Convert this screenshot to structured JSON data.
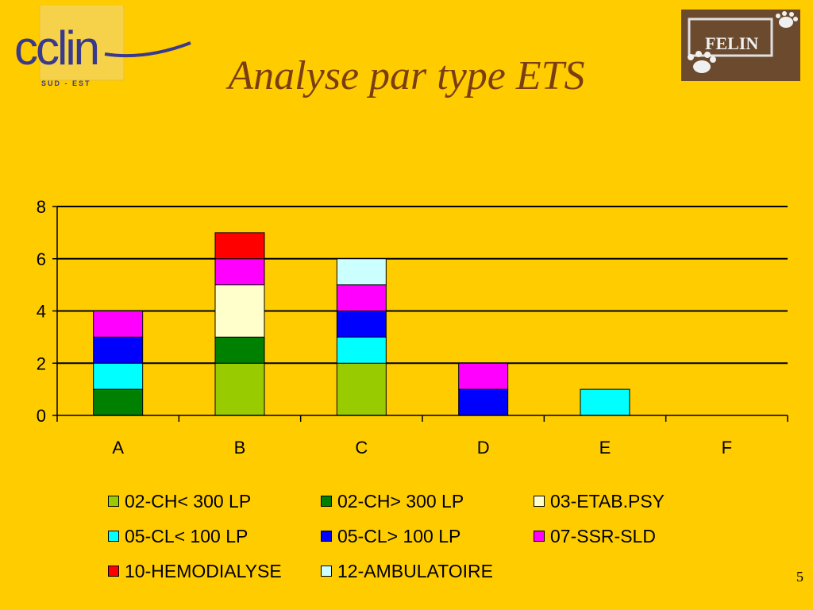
{
  "slide": {
    "title": "Analyse par type ETS",
    "page_number": "5"
  },
  "logos": {
    "left": {
      "text": "cclin",
      "subtext": "SUD - EST"
    },
    "right": {
      "text": "FELIN"
    }
  },
  "chart_data": {
    "type": "bar",
    "stacked": true,
    "categories": [
      "A",
      "B",
      "C",
      "D",
      "E",
      "F"
    ],
    "ylim": [
      0,
      8
    ],
    "yticks": [
      0,
      2,
      4,
      6,
      8
    ],
    "grid": true,
    "legend_position": "bottom",
    "series": [
      {
        "name": "02-CH< 300 LP",
        "color": "#99CC00",
        "values": [
          0,
          2,
          2,
          0,
          0,
          0
        ]
      },
      {
        "name": "02-CH> 300 LP",
        "color": "#008000",
        "values": [
          1,
          1,
          0,
          0,
          0,
          0
        ]
      },
      {
        "name": "03-ETAB.PSY",
        "color": "#FFFFCC",
        "values": [
          0,
          2,
          0,
          0,
          0,
          0
        ]
      },
      {
        "name": "05-CL< 100 LP",
        "color": "#00FFFF",
        "values": [
          1,
          0,
          1,
          0,
          1,
          0
        ]
      },
      {
        "name": "05-CL> 100 LP",
        "color": "#0000FF",
        "values": [
          1,
          0,
          1,
          1,
          0,
          0
        ]
      },
      {
        "name": "07-SSR-SLD",
        "color": "#FF00FF",
        "values": [
          1,
          1,
          1,
          1,
          0,
          0
        ]
      },
      {
        "name": "10-HEMODIALYSE",
        "color": "#FF0000",
        "values": [
          0,
          1,
          0,
          0,
          0,
          0
        ]
      },
      {
        "name": "12-AMBULATOIRE",
        "color": "#CCFFFF",
        "values": [
          0,
          0,
          1,
          0,
          0,
          0
        ]
      }
    ]
  }
}
